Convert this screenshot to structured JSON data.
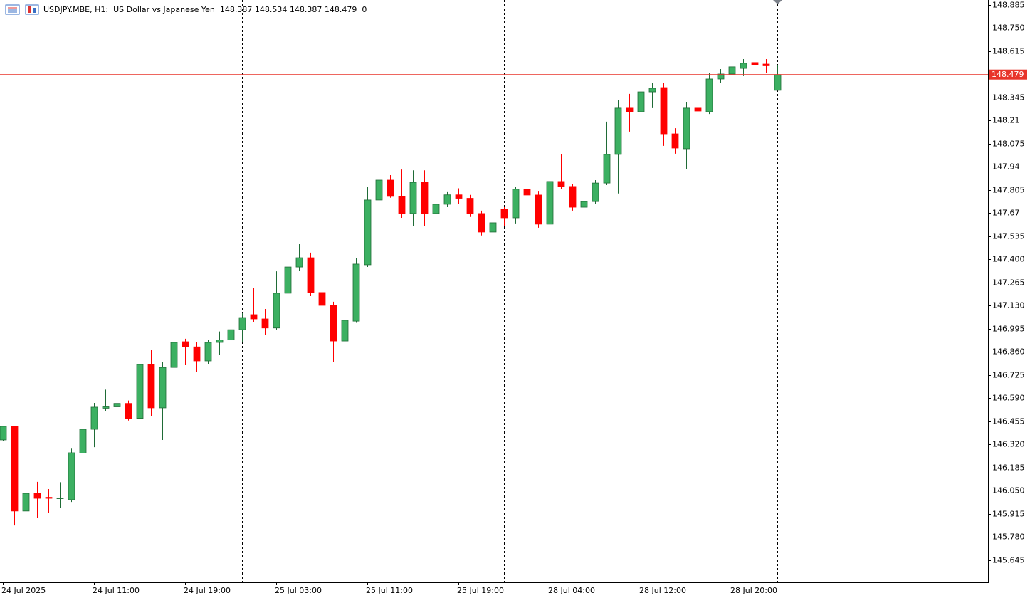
{
  "chart_data": {
    "type": "candlestick",
    "symbol": "USDJPY.MBE, H1:",
    "description": "US Dollar vs Japanese Yen",
    "volume": 0,
    "current_price": 148.479,
    "categories": [
      "24 Jul 2025",
      null,
      null,
      null,
      null,
      null,
      null,
      null,
      "24 Jul 11:00",
      null,
      null,
      null,
      null,
      null,
      null,
      null,
      "24 Jul 19:00",
      null,
      null,
      null,
      null,
      null,
      null,
      null,
      "25 Jul 03:00",
      null,
      null,
      null,
      null,
      null,
      null,
      null,
      "25 Jul 11:00",
      null,
      null,
      null,
      null,
      null,
      null,
      null,
      "25 Jul 19:00",
      null,
      null,
      null,
      null,
      null,
      null,
      null,
      "28 Jul 04:00",
      null,
      null,
      null,
      null,
      null,
      null,
      null,
      "28 Jul 12:00",
      null,
      null,
      null,
      null,
      null,
      null,
      null,
      "28 Jul 20:00",
      null,
      null,
      null,
      null
    ],
    "day_separators": [
      21,
      44,
      68
    ],
    "open": [
      146.347,
      146.426,
      145.932,
      146.035,
      146.012,
      146.005,
      145.998,
      146.27,
      146.409,
      146.532,
      146.54,
      146.56,
      146.473,
      146.787,
      146.534,
      146.77,
      146.92,
      146.89,
      146.808,
      146.916,
      146.93,
      146.99,
      147.078,
      147.053,
      147.0,
      147.203,
      147.356,
      147.41,
      147.207,
      147.132,
      146.924,
      147.04,
      147.369,
      147.747,
      147.863,
      147.768,
      147.668,
      147.85,
      147.668,
      147.722,
      147.777,
      147.757,
      147.668,
      147.56,
      147.693,
      147.643,
      147.81,
      147.776,
      147.606,
      147.855,
      147.826,
      147.705,
      147.738,
      147.846,
      148.013,
      148.283,
      148.262,
      148.378,
      148.403,
      148.133,
      148.046,
      148.283,
      148.262,
      148.453,
      148.482,
      148.515,
      148.549,
      148.54,
      148.387
    ],
    "high": [
      146.43,
      146.43,
      146.148,
      146.102,
      146.06,
      146.1,
      146.3,
      146.45,
      146.563,
      146.64,
      146.645,
      146.577,
      146.84,
      146.87,
      146.8,
      146.937,
      146.937,
      146.92,
      146.93,
      146.98,
      147.02,
      147.086,
      147.236,
      147.111,
      147.331,
      147.46,
      147.489,
      147.44,
      147.263,
      147.153,
      147.086,
      147.406,
      147.822,
      147.892,
      147.892,
      147.925,
      147.92,
      147.92,
      147.75,
      147.797,
      147.815,
      147.777,
      147.685,
      147.627,
      147.705,
      147.822,
      147.871,
      147.8,
      147.867,
      148.013,
      147.842,
      147.78,
      147.863,
      148.204,
      148.33,
      148.366,
      148.407,
      148.428,
      148.432,
      148.166,
      148.32,
      148.308,
      148.486,
      148.511,
      148.561,
      148.569,
      148.557,
      148.569,
      148.534
    ],
    "low": [
      146.34,
      145.848,
      145.925,
      145.89,
      145.92,
      145.95,
      145.985,
      146.14,
      146.305,
      146.515,
      146.515,
      146.46,
      146.44,
      146.484,
      146.347,
      146.733,
      146.783,
      146.745,
      146.79,
      146.845,
      146.915,
      146.916,
      147.036,
      146.958,
      146.99,
      147.161,
      147.335,
      147.186,
      147.087,
      146.804,
      146.837,
      147.03,
      147.356,
      147.73,
      147.76,
      147.643,
      147.597,
      147.597,
      147.523,
      147.705,
      147.725,
      147.648,
      147.54,
      147.535,
      147.597,
      147.61,
      147.74,
      147.585,
      147.506,
      147.81,
      147.685,
      147.614,
      147.722,
      147.834,
      147.785,
      148.146,
      148.216,
      148.283,
      148.063,
      148.017,
      147.926,
      148.087,
      148.249,
      148.432,
      148.378,
      148.47,
      148.515,
      148.486,
      148.387
    ],
    "close": [
      146.426,
      145.932,
      146.035,
      146.006,
      146.006,
      146.008,
      146.272,
      146.409,
      146.538,
      146.54,
      146.56,
      146.473,
      146.787,
      146.534,
      146.77,
      146.916,
      146.89,
      146.808,
      146.916,
      146.93,
      146.99,
      147.061,
      147.053,
      147.0,
      147.203,
      147.356,
      147.41,
      147.207,
      147.132,
      146.924,
      147.045,
      147.373,
      147.747,
      147.863,
      147.768,
      147.668,
      147.85,
      147.668,
      147.722,
      147.777,
      147.757,
      147.668,
      147.56,
      147.614,
      147.643,
      147.81,
      147.776,
      147.606,
      147.855,
      147.826,
      147.705,
      147.738,
      147.846,
      148.013,
      148.283,
      148.262,
      148.378,
      148.399,
      148.133,
      148.05,
      148.283,
      148.266,
      148.453,
      148.482,
      148.524,
      148.545,
      148.536,
      148.53,
      148.479
    ],
    "up_color": "#3cb062",
    "down_color": "#ff0000",
    "price_line_color": "#e8332a",
    "ylim": [
      145.516,
      148.914
    ],
    "yticks": [
      148.885,
      {
        "value": 148.75,
        "label": "148.750"
      },
      148.615,
      148.345,
      148.21,
      {
        "value": 148.075,
        "label": "148.075"
      },
      147.94,
      147.805,
      147.67,
      147.535,
      {
        "value": 147.4,
        "label": "147.400"
      },
      147.265,
      {
        "value": 147.13,
        "label": "147.130"
      },
      146.995,
      {
        "value": 146.86,
        "label": "146.860"
      },
      146.725,
      {
        "value": 146.59,
        "label": "146.590"
      },
      146.455,
      {
        "value": 146.32,
        "label": "146.320"
      },
      146.185,
      {
        "value": 146.05,
        "label": "146.050"
      },
      145.915,
      {
        "value": 145.78,
        "label": "145.780"
      },
      145.645
    ]
  }
}
